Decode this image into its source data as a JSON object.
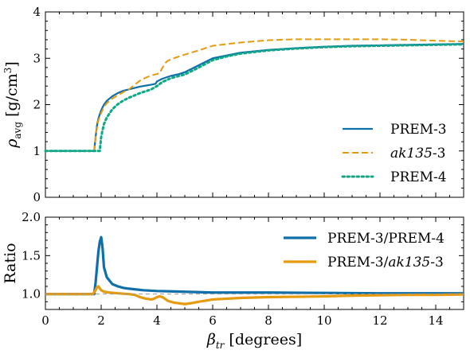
{
  "chart_data": [
    {
      "type": "line",
      "panel": "top",
      "ylabel": "ρavg [g/cm³]",
      "ylabel_parts": {
        "symbol": "ρ",
        "sub": "avg",
        "unit": " [g/cm",
        "sup": "3",
        "close": "]"
      },
      "xlim": [
        0,
        15
      ],
      "ylim": [
        0,
        4
      ],
      "yticks": [
        0,
        1,
        2,
        3,
        4
      ],
      "legend_position": "lower-right",
      "series": [
        {
          "name": "PREM-3",
          "style": "solid",
          "color": "#0f6fa8",
          "x": [
            0,
            1.75,
            1.8,
            1.85,
            1.9,
            2.0,
            2.1,
            2.2,
            2.4,
            2.6,
            2.8,
            3.0,
            3.2,
            3.4,
            3.6,
            3.8,
            3.95,
            4.0,
            4.2,
            4.5,
            4.8,
            5.0,
            5.5,
            6.0,
            6.5,
            7,
            8,
            9,
            10,
            11,
            12,
            13,
            14,
            15
          ],
          "y": [
            1.0,
            1.0,
            1.3,
            1.55,
            1.7,
            1.88,
            2.0,
            2.08,
            2.18,
            2.25,
            2.3,
            2.33,
            2.36,
            2.39,
            2.41,
            2.43,
            2.45,
            2.5,
            2.56,
            2.62,
            2.66,
            2.7,
            2.85,
            3.0,
            3.06,
            3.12,
            3.18,
            3.22,
            3.25,
            3.27,
            3.28,
            3.29,
            3.3,
            3.31
          ]
        },
        {
          "name": "ak135-3",
          "style": "dashed",
          "color": "#e69a0e",
          "x": [
            0,
            1.75,
            1.8,
            1.85,
            1.9,
            2.0,
            2.1,
            2.2,
            2.4,
            2.6,
            2.8,
            3.0,
            3.2,
            3.4,
            3.6,
            3.8,
            4.0,
            4.1,
            4.2,
            4.3,
            4.4,
            4.6,
            5.0,
            5.5,
            6,
            7,
            8,
            9,
            10,
            11,
            12,
            13,
            14,
            15
          ],
          "y": [
            1.0,
            1.0,
            1.3,
            1.5,
            1.66,
            1.82,
            1.95,
            2.03,
            2.13,
            2.2,
            2.27,
            2.33,
            2.43,
            2.52,
            2.58,
            2.63,
            2.66,
            2.68,
            2.8,
            2.9,
            2.95,
            3.0,
            3.08,
            3.17,
            3.27,
            3.34,
            3.39,
            3.41,
            3.41,
            3.41,
            3.41,
            3.4,
            3.38,
            3.36
          ]
        },
        {
          "name": "PREM-4",
          "style": "dotted",
          "color": "#0ea886",
          "x": [
            0,
            1.95,
            2.0,
            2.05,
            2.1,
            2.2,
            2.4,
            2.6,
            2.8,
            3.0,
            3.2,
            3.4,
            3.6,
            3.8,
            4.0,
            4.2,
            4.5,
            4.8,
            5.0,
            5.5,
            6.0,
            6.5,
            7,
            8,
            9,
            10,
            11,
            12,
            13,
            14,
            15
          ],
          "y": [
            1.0,
            1.0,
            1.3,
            1.45,
            1.58,
            1.72,
            1.9,
            2.01,
            2.09,
            2.15,
            2.2,
            2.25,
            2.29,
            2.33,
            2.4,
            2.49,
            2.57,
            2.62,
            2.65,
            2.8,
            2.96,
            3.04,
            3.1,
            3.17,
            3.21,
            3.24,
            3.26,
            3.27,
            3.28,
            3.29,
            3.3
          ]
        }
      ]
    },
    {
      "type": "line",
      "panel": "bottom",
      "ylabel": "Ratio",
      "xlabel": "βtr [degrees]",
      "xlabel_parts": {
        "symbol": "β",
        "sub": "tr",
        "unit": " [degrees]"
      },
      "xlim": [
        0,
        15
      ],
      "ylim": [
        0.8,
        2.0
      ],
      "yticks": [
        1.0,
        1.5,
        2.0
      ],
      "xticks": [
        0,
        2,
        4,
        6,
        8,
        10,
        12,
        14
      ],
      "legend_position": "upper-right",
      "series": [
        {
          "name": "PREM-3/PREM-4",
          "style": "solid-thick",
          "color": "#0f6fa8",
          "x": [
            0,
            1.75,
            1.8,
            1.85,
            1.9,
            1.95,
            2.0,
            2.05,
            2.1,
            2.2,
            2.4,
            2.6,
            2.8,
            3.0,
            3.5,
            4.0,
            4.5,
            5,
            6,
            8,
            10,
            12,
            14,
            15
          ],
          "y": [
            1.0,
            1.0,
            1.15,
            1.35,
            1.55,
            1.68,
            1.74,
            1.6,
            1.35,
            1.22,
            1.13,
            1.1,
            1.08,
            1.07,
            1.05,
            1.04,
            1.035,
            1.03,
            1.02,
            1.02,
            1.015,
            1.01,
            1.01,
            1.01
          ]
        },
        {
          "name": "PREM-3/ak135-3",
          "style": "solid-thick",
          "color": "#e69a0e",
          "x": [
            0,
            1.7,
            1.8,
            1.85,
            1.9,
            2.0,
            2.1,
            2.3,
            2.6,
            3.0,
            3.2,
            3.4,
            3.6,
            3.8,
            3.9,
            4.0,
            4.1,
            4.2,
            4.4,
            4.6,
            5.0,
            5.2,
            5.5,
            6,
            7,
            8,
            9,
            10,
            11,
            12,
            13,
            14,
            15
          ],
          "y": [
            1.0,
            1.0,
            1.05,
            1.09,
            1.1,
            1.05,
            1.03,
            1.02,
            1.01,
            1.0,
            0.99,
            0.96,
            0.94,
            0.93,
            0.94,
            0.96,
            0.97,
            0.96,
            0.91,
            0.89,
            0.87,
            0.88,
            0.9,
            0.93,
            0.95,
            0.96,
            0.965,
            0.97,
            0.98,
            0.985,
            0.99,
            0.99,
            0.995
          ]
        }
      ]
    }
  ]
}
